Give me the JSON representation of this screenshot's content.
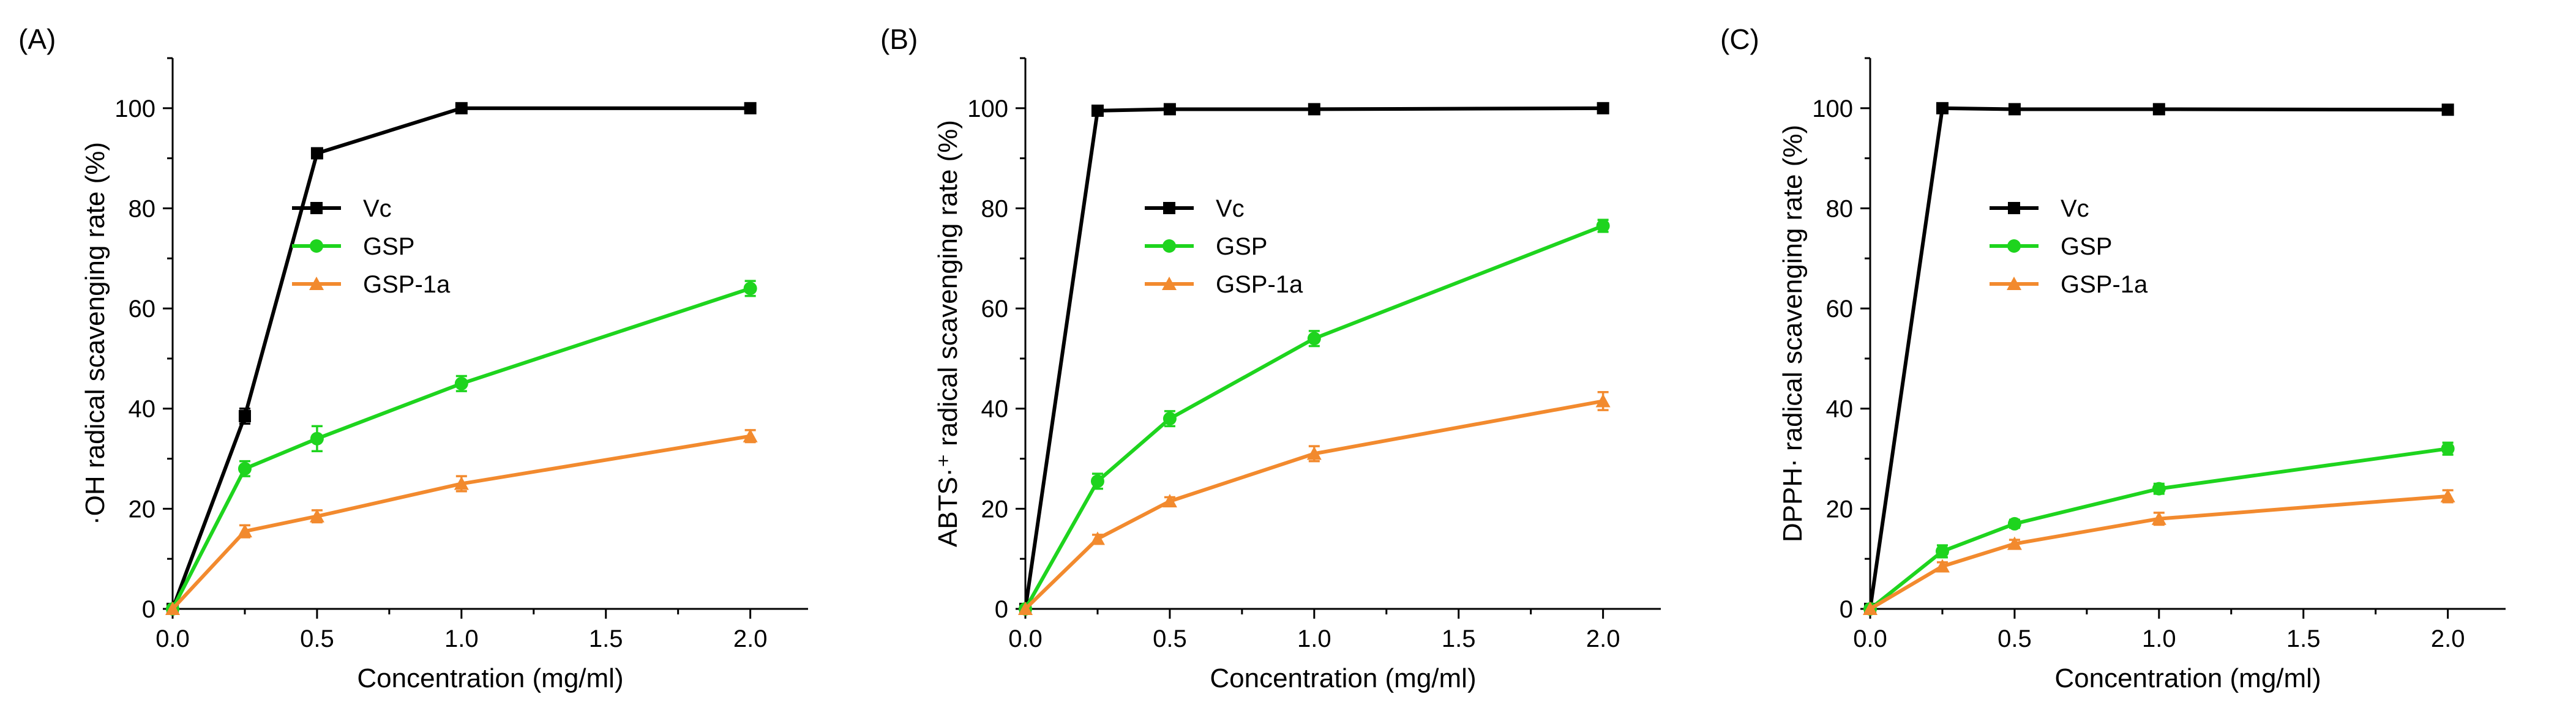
{
  "colors": {
    "Vc": "#000000",
    "GSP": "#1ed41e",
    "GSP-1a": "#f28a2e"
  },
  "chart_data": [
    {
      "panel_label": "(A)",
      "type": "line",
      "xlabel": "Concentration (mg/ml)",
      "ylabel": "·OH radical scavenging rate (%)",
      "xlim": [
        0,
        2.2
      ],
      "ylim": [
        0,
        110
      ],
      "xticks": [
        "0.0",
        "0.5",
        "1.0",
        "1.5",
        "2.0"
      ],
      "yticks": [
        "0",
        "20",
        "40",
        "60",
        "80",
        "100"
      ],
      "legend_position": "upper-left",
      "grid": false,
      "x": [
        0,
        0.25,
        0.5,
        1.0,
        2.0
      ],
      "series": [
        {
          "name": "Vc",
          "marker": "square",
          "values": [
            0,
            38.5,
            91,
            100,
            100
          ],
          "errors": [
            0,
            1.5,
            1,
            0.6,
            0.8
          ]
        },
        {
          "name": "GSP",
          "marker": "circle",
          "values": [
            0,
            28,
            34,
            45,
            64
          ],
          "errors": [
            0,
            1.5,
            2.5,
            1.5,
            1.5
          ]
        },
        {
          "name": "GSP-1a",
          "marker": "triangle",
          "values": [
            0,
            15.5,
            18.5,
            25,
            34.5
          ],
          "errors": [
            0,
            1.2,
            1.2,
            1.5,
            1.2
          ]
        }
      ]
    },
    {
      "panel_label": "(B)",
      "type": "line",
      "xlabel": "Concentration (mg/ml)",
      "ylabel": "ABTS·⁺ radical scavenging rate (%)",
      "xlim": [
        0,
        2.2
      ],
      "ylim": [
        0,
        110
      ],
      "xticks": [
        "0.0",
        "0.5",
        "1.0",
        "1.5",
        "2.0"
      ],
      "yticks": [
        "0",
        "20",
        "40",
        "60",
        "80",
        "100"
      ],
      "legend_position": "upper-left",
      "grid": false,
      "x": [
        0,
        0.25,
        0.5,
        1.0,
        2.0
      ],
      "series": [
        {
          "name": "Vc",
          "marker": "square",
          "values": [
            0,
            99.5,
            99.8,
            99.8,
            100
          ],
          "errors": [
            0,
            0.5,
            0.5,
            0.5,
            0.8
          ]
        },
        {
          "name": "GSP",
          "marker": "circle",
          "values": [
            0,
            25.5,
            38,
            54,
            76.5
          ],
          "errors": [
            0,
            1.5,
            1.5,
            1.5,
            1.2
          ]
        },
        {
          "name": "GSP-1a",
          "marker": "triangle",
          "values": [
            0,
            14,
            21.5,
            31,
            41.5
          ],
          "errors": [
            0,
            0.8,
            0.8,
            1.5,
            1.8
          ]
        }
      ]
    },
    {
      "panel_label": "(C)",
      "type": "line",
      "xlabel": "Concentration (mg/ml)",
      "ylabel": "DPPH· radical scavenging rate (%)",
      "xlim": [
        0,
        2.2
      ],
      "ylim": [
        0,
        110
      ],
      "xticks": [
        "0.0",
        "0.5",
        "1.0",
        "1.5",
        "2.0"
      ],
      "yticks": [
        "0",
        "20",
        "40",
        "60",
        "80",
        "100"
      ],
      "legend_position": "upper-left",
      "grid": false,
      "x": [
        0,
        0.25,
        0.5,
        1.0,
        2.0
      ],
      "series": [
        {
          "name": "Vc",
          "marker": "square",
          "values": [
            0,
            100,
            99.8,
            99.8,
            99.7
          ],
          "errors": [
            0,
            0.4,
            0.5,
            0.6,
            0.5
          ]
        },
        {
          "name": "GSP",
          "marker": "circle",
          "values": [
            0,
            11.5,
            17,
            24,
            32
          ],
          "errors": [
            0,
            1.2,
            0.8,
            1,
            1.2
          ]
        },
        {
          "name": "GSP-1a",
          "marker": "triangle",
          "values": [
            0,
            8.5,
            13,
            18,
            22.5
          ],
          "errors": [
            0,
            0.8,
            0.8,
            1.2,
            1.2
          ]
        }
      ]
    }
  ]
}
